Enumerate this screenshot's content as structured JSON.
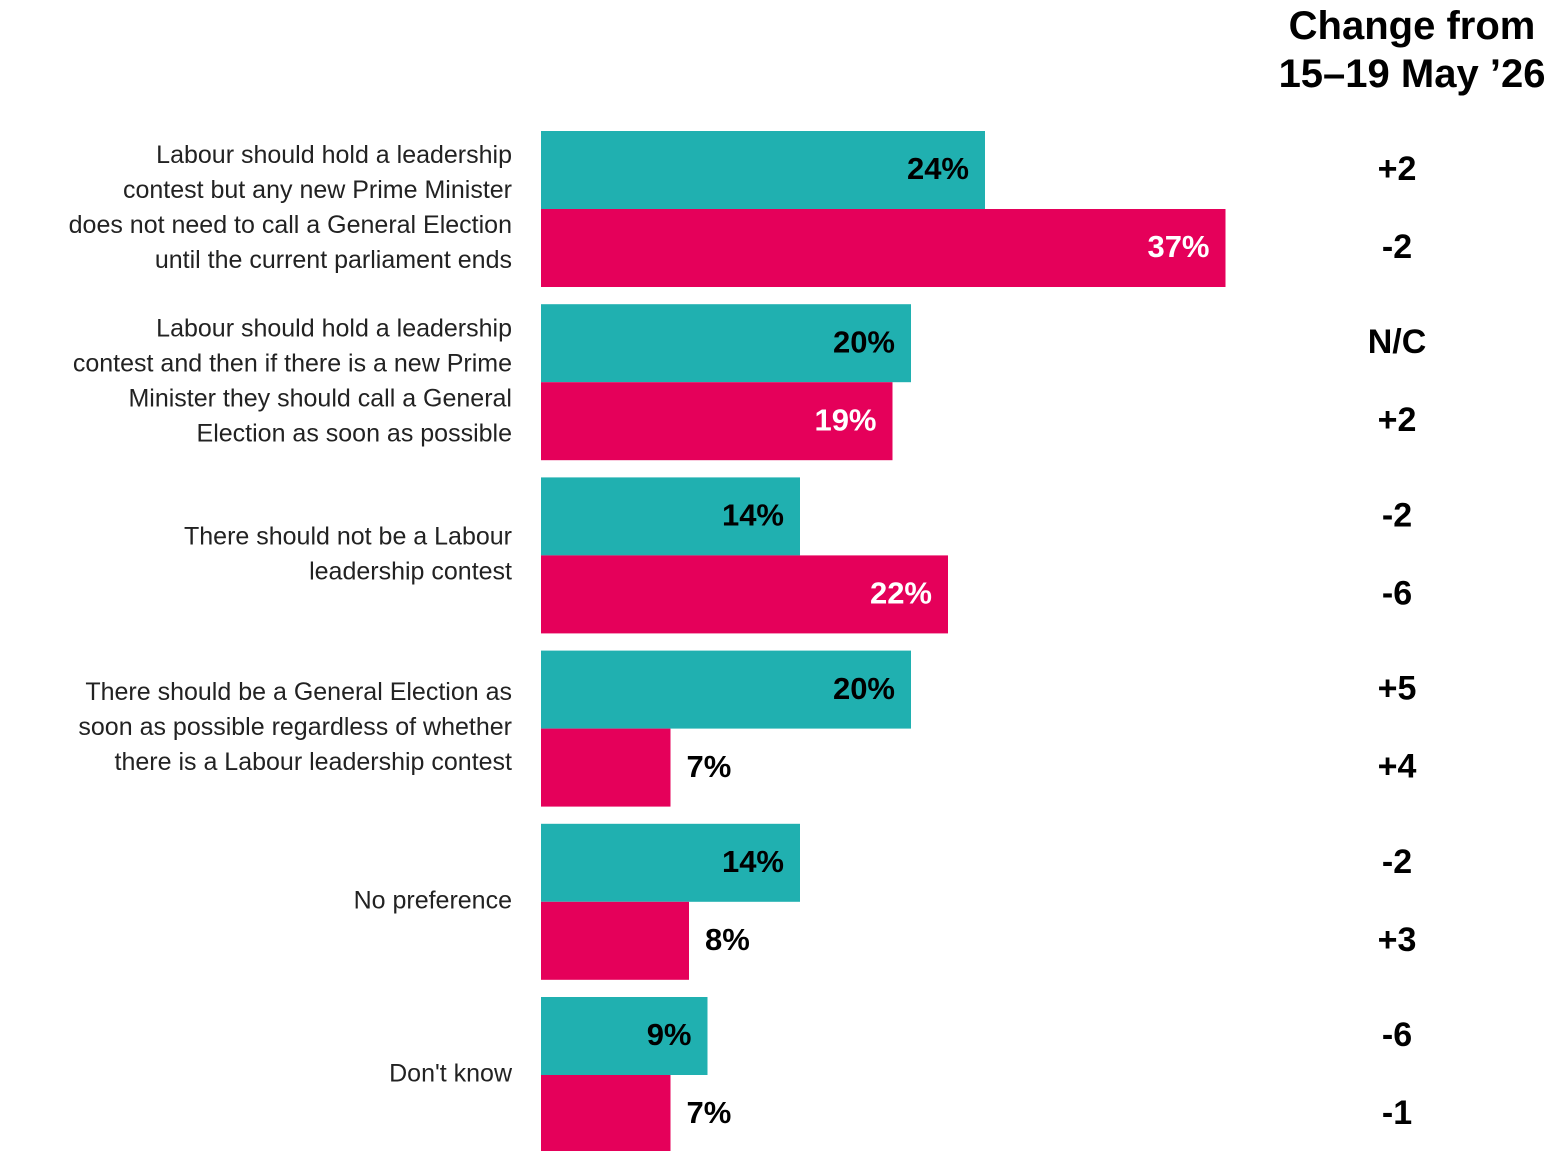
{
  "change_header": {
    "line1": "Change from",
    "line2": "15–19 May ’26"
  },
  "colors": {
    "series_a": "#20b0b0",
    "series_b": "#e5005a"
  },
  "chart_data": {
    "type": "bar",
    "orientation": "horizontal",
    "legend": "none",
    "grid": false,
    "xlim": [
      0,
      40
    ],
    "categories": [
      [
        "Labour should hold a leadership",
        "contest but any new Prime Minister",
        "does not need to call a General Election",
        "until the current parliament ends"
      ],
      [
        "Labour should hold a leadership",
        "contest and then if there is a new Prime",
        "Minister they should call a General",
        "Election as soon as possible"
      ],
      [
        "There should not be a Labour",
        "leadership contest"
      ],
      [
        "There should be a General Election as",
        "soon as possible regardless of whether",
        "there is a Labour leadership contest"
      ],
      [
        "No preference"
      ],
      [
        "Don't know"
      ]
    ],
    "series": [
      {
        "color": "#20b0b0",
        "values": [
          24,
          20,
          14,
          20,
          14,
          9
        ],
        "value_labels": [
          "24%",
          "20%",
          "14%",
          "20%",
          "14%",
          "9%"
        ],
        "change_labels": [
          "+2",
          "N/C",
          "-2",
          "+5",
          "-2",
          "-6"
        ]
      },
      {
        "color": "#e5005a",
        "values": [
          37,
          19,
          22,
          7,
          8,
          7
        ],
        "value_labels": [
          "37%",
          "19%",
          "22%",
          "7%",
          "8%",
          "7%"
        ],
        "change_labels": [
          "-2",
          "+2",
          "-6",
          "+4",
          "+3",
          "-1"
        ]
      }
    ]
  }
}
